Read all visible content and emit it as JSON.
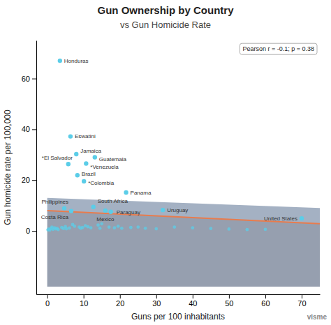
{
  "chart_data": {
    "type": "scatter",
    "title": "Gun Ownership by Country",
    "subtitle": "vs Gun Homicide Rate",
    "x_label": "Guns per 100 inhabitants",
    "y_label": "Gun homicide rate per 100,000",
    "annotations": [
      "Pearson r = -0.1; p = 0.38",
      "visme"
    ],
    "xlim": [
      -3,
      75
    ],
    "ylim": [
      -25,
      75
    ],
    "xticks": [
      0,
      10,
      20,
      30,
      40,
      50,
      60,
      70
    ],
    "yticks": [
      0,
      20,
      40,
      60
    ],
    "grid": false,
    "series": [
      {
        "type": "area",
        "color": "#4a6488",
        "x": [
          0,
          75,
          75,
          0
        ],
        "values": [
          13.0,
          9.0,
          2.8,
          8.0
        ]
      },
      {
        "type": "area",
        "color": "#2d4060",
        "x": [
          0,
          75,
          75,
          0
        ],
        "values": [
          8.0,
          2.8,
          -22,
          -22
        ]
      },
      {
        "type": "line",
        "color": "#e87c4e",
        "x": [
          0,
          75
        ],
        "values": [
          8.0,
          2.8
        ]
      },
      {
        "type": "scatter",
        "color": "#5bcde8",
        "x": [
          0.2,
          0.4,
          0.7,
          1.0,
          1.3,
          1.6,
          2.0,
          2.3,
          2.7,
          3.0,
          3.5,
          4.0,
          4.5,
          4.7,
          5.0,
          5.3,
          5.8,
          6.1,
          6.4,
          6.6,
          7.0,
          7.5,
          8.0,
          8.3,
          8.8,
          9.2,
          9.7,
          10.1,
          10.5,
          10.7,
          11.2,
          12.0,
          12.7,
          13.1,
          14.0,
          14.5,
          15.0,
          16.0,
          17.0,
          17.5,
          18.5,
          19.5,
          20.5,
          21.7,
          23.0,
          25.0,
          27.0,
          30.0,
          31.8,
          35.0,
          40.0,
          45.0,
          50.0,
          55.0,
          60.0,
          70.0
        ],
        "values": [
          0.4,
          0.7,
          0.3,
          0.9,
          1.5,
          0.6,
          1.2,
          0.8,
          1.0,
          0.5,
          67.0,
          1.3,
          0.9,
          8.9,
          1.7,
          0.8,
          26.3,
          1.1,
          37.2,
          7.8,
          2.5,
          1.8,
          30.2,
          21.9,
          1.5,
          1.0,
          1.3,
          19.5,
          2.0,
          26.5,
          1.6,
          1.2,
          9.4,
          29.0,
          2.3,
          1.0,
          2.8,
          8.0,
          1.5,
          7.5,
          1.2,
          1.8,
          1.0,
          15.1,
          1.3,
          1.5,
          1.0,
          0.8,
          8.2,
          1.5,
          1.2,
          0.9,
          0.7,
          0.5,
          0.6,
          4.9
        ]
      },
      {
        "type": "scatter",
        "color": "#5bcde8",
        "x": [
          3.5,
          6.4,
          8.0,
          13.1,
          5.8,
          10.7,
          8.3,
          10.1,
          21.7,
          4.7,
          6.6,
          12.7,
          16.0,
          17.5,
          31.8,
          70.0
        ],
        "values": [
          67.0,
          37.2,
          30.2,
          29.0,
          26.3,
          26.5,
          21.9,
          19.5,
          15.1,
          8.9,
          7.8,
          9.4,
          8.0,
          7.5,
          8.2,
          4.9
        ],
        "labels": [
          "Honduras",
          "Eswatini",
          "Jamaica",
          "Guatemala",
          "*El Salvador",
          "*Venezuela",
          "Brazil",
          "*Colombia",
          "Panama",
          "Philippines",
          "Costa Rica",
          "South Africa",
          "Mexico",
          "Paraguay",
          "Uruguay",
          "United States"
        ]
      }
    ]
  }
}
